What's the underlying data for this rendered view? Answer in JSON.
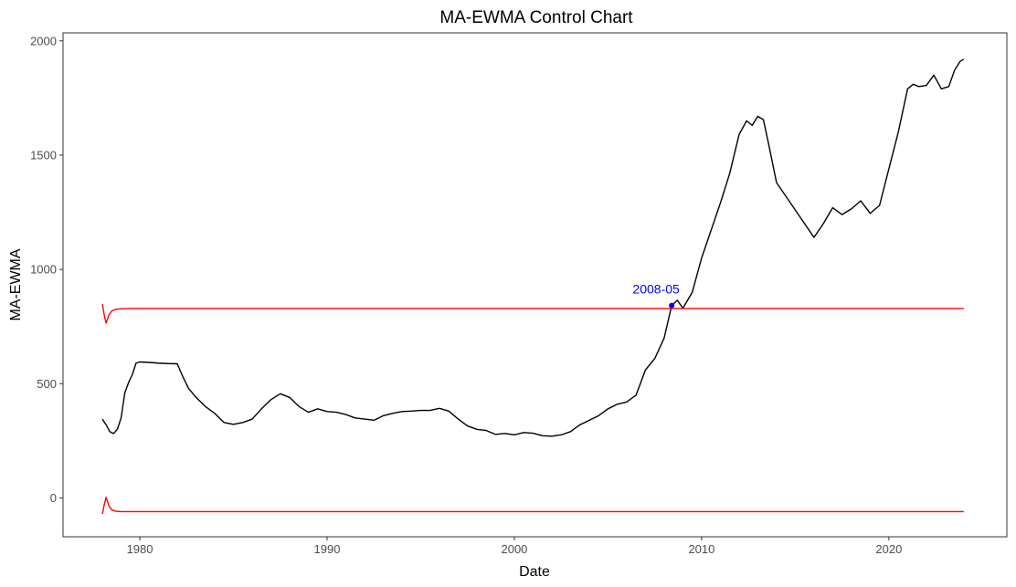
{
  "chart_data": {
    "type": "line",
    "title": "MA-EWMA Control Chart",
    "xlabel": "Date",
    "ylabel": "MA-EWMA",
    "xlim": [
      1975.9,
      2026.3
    ],
    "ylim": [
      -170,
      2035
    ],
    "x_ticks": [
      1980,
      1990,
      2000,
      2010,
      2020
    ],
    "y_ticks": [
      0,
      500,
      1000,
      1500,
      2000
    ],
    "grid": false,
    "legend": "none",
    "colors": {
      "series": "#000000",
      "limits": "#ff0000",
      "signal": "#0000ff",
      "axis_text": "#4d4d4d",
      "frame": "#333333"
    },
    "series": [
      {
        "x": [
          1978.0,
          1978.2,
          1978.4,
          1978.6,
          1978.8,
          1979.0,
          1979.2,
          1979.4,
          1979.6,
          1979.8,
          1980.0,
          1980.5,
          1981.0,
          1981.5,
          1982.0,
          1982.3,
          1982.6,
          1983.0,
          1983.5,
          1984.0,
          1984.5,
          1985.0,
          1985.5,
          1986.0,
          1986.5,
          1987.0,
          1987.5,
          1988.0,
          1988.5,
          1989.0,
          1989.5,
          1990.0,
          1990.5,
          1991.0,
          1991.5,
          1992.0,
          1992.5,
          1993.0,
          1993.5,
          1994.0,
          1994.5,
          1995.0,
          1995.5,
          1996.0,
          1996.5,
          1997.0,
          1997.5,
          1998.0,
          1998.5,
          1999.0,
          1999.5,
          2000.0,
          2000.5,
          2001.0,
          2001.5,
          2002.0,
          2002.5,
          2003.0,
          2003.5,
          2004.0,
          2004.5,
          2005.0,
          2005.5,
          2006.0,
          2006.5,
          2007.0,
          2007.5,
          2008.0,
          2008.4,
          2008.7,
          2009.0,
          2009.5,
          2010.0,
          2010.5,
          2011.0,
          2011.5,
          2012.0,
          2012.4,
          2012.7,
          2013.0,
          2013.3,
          2013.6,
          2014.0,
          2014.5,
          2015.0,
          2015.5,
          2016.0,
          2016.5,
          2017.0,
          2017.5,
          2018.0,
          2018.5,
          2019.0,
          2019.5,
          2020.0,
          2020.5,
          2021.0,
          2021.3,
          2021.6,
          2022.0,
          2022.4,
          2022.8,
          2023.2,
          2023.5,
          2023.8,
          2024.0
        ],
        "y": [
          345,
          320,
          290,
          282,
          300,
          350,
          460,
          505,
          540,
          590,
          595,
          593,
          590,
          588,
          587,
          530,
          480,
          440,
          400,
          370,
          330,
          322,
          330,
          345,
          390,
          430,
          456,
          440,
          400,
          375,
          390,
          378,
          375,
          365,
          350,
          345,
          340,
          360,
          370,
          378,
          380,
          383,
          383,
          392,
          380,
          345,
          315,
          300,
          295,
          278,
          282,
          276,
          286,
          283,
          272,
          270,
          276,
          290,
          320,
          340,
          360,
          390,
          410,
          420,
          450,
          560,
          610,
          700,
          842,
          865,
          830,
          900,
          1050,
          1170,
          1290,
          1420,
          1590,
          1650,
          1630,
          1670,
          1655,
          1540,
          1380,
          1320,
          1260,
          1200,
          1140,
          1200,
          1270,
          1240,
          1265,
          1300,
          1245,
          1280,
          1440,
          1600,
          1790,
          1810,
          1800,
          1805,
          1850,
          1790,
          1800,
          1870,
          1910,
          1920
        ]
      },
      {
        "x": [
          1978.0,
          1978.1,
          1978.2,
          1978.35,
          1978.5,
          1978.7,
          1979.0,
          1979.5,
          1980.0,
          2024.0
        ],
        "y": [
          848,
          800,
          765,
          800,
          818,
          825,
          828,
          829,
          829,
          829
        ]
      },
      {
        "x": [
          1978.0,
          1978.1,
          1978.2,
          1978.35,
          1978.5,
          1978.7,
          1979.0,
          1979.5,
          1980.0,
          2024.0
        ],
        "y": [
          -70,
          -30,
          3,
          -35,
          -52,
          -58,
          -60,
          -60,
          -60,
          -60
        ]
      }
    ],
    "annotations": [
      {
        "x": 2008.4,
        "y": 842,
        "label": "2008-05"
      }
    ]
  }
}
